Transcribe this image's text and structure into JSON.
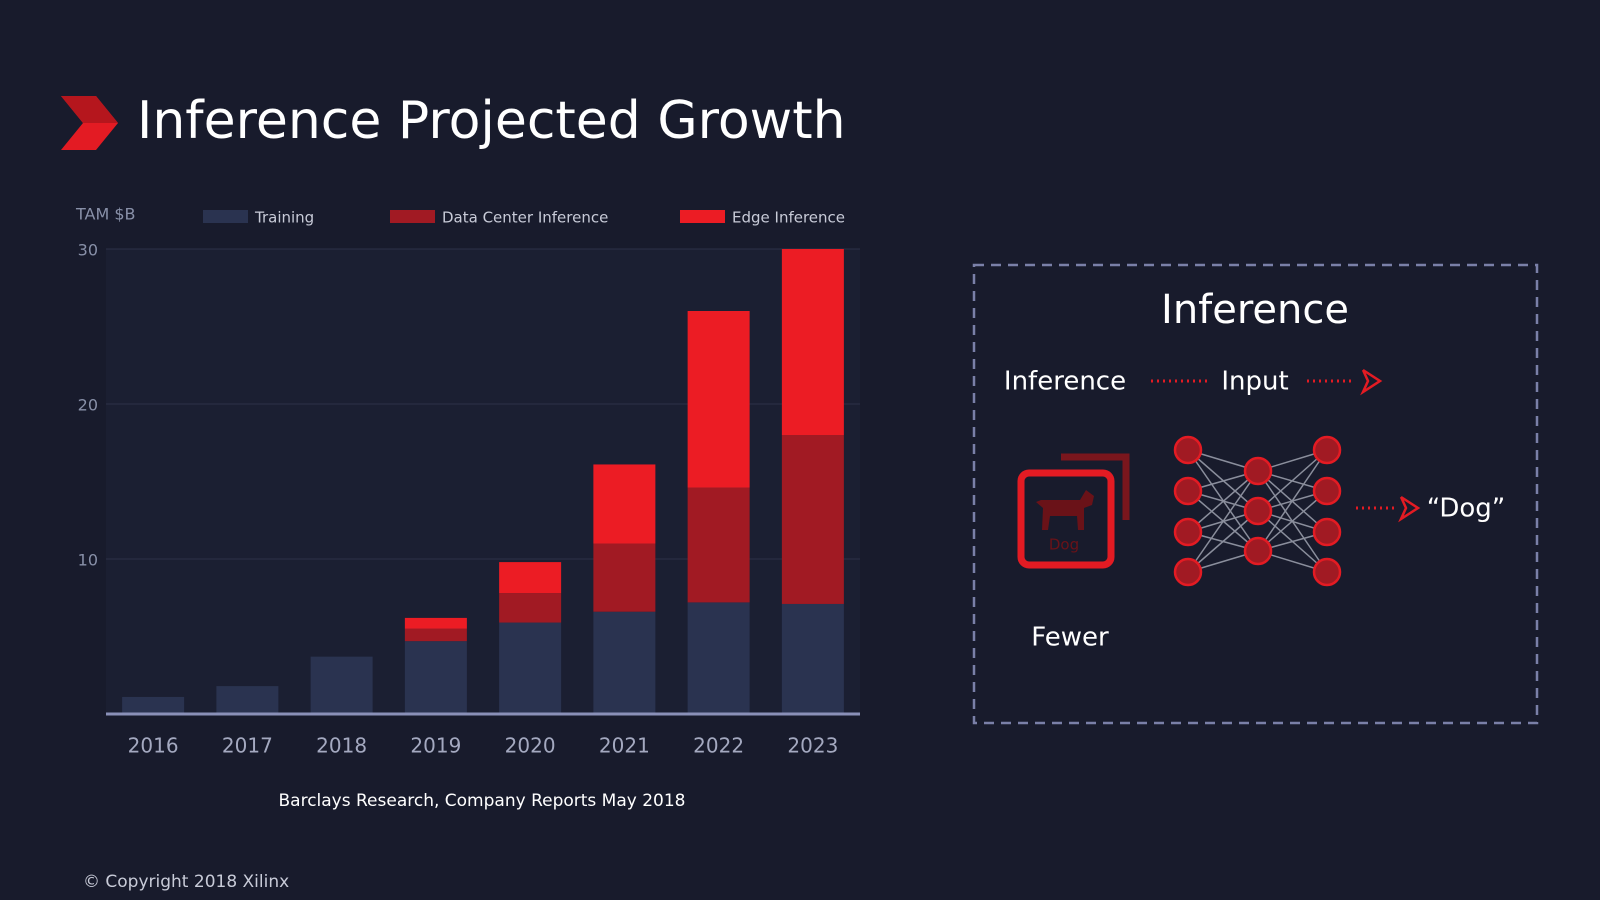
{
  "title": "Inference Projected Growth",
  "chart_data": {
    "type": "stacked-bar",
    "y_label": "TAM $B",
    "categories": [
      "2016",
      "2017",
      "2018",
      "2019",
      "2020",
      "2021",
      "2022",
      "2023"
    ],
    "series": [
      {
        "name": "Training",
        "color": "#2a3350",
        "values": [
          1.1,
          1.8,
          3.7,
          4.7,
          5.9,
          6.6,
          7.2,
          7.1
        ]
      },
      {
        "name": "Data Center Inference",
        "color": "#a11a23",
        "values": [
          0,
          0,
          0,
          0.8,
          1.9,
          4.4,
          7.4,
          10.9
        ]
      },
      {
        "name": "Edge Inference",
        "color": "#ec1c24",
        "values": [
          0,
          0,
          0,
          0.7,
          2.0,
          5.1,
          11.4,
          12.0
        ]
      }
    ],
    "ylim": [
      0,
      30
    ],
    "yticks": [
      10,
      20,
      30
    ],
    "grid": true
  },
  "source": "Barclays Research, Company Reports May 2018",
  "copyright": "© Copyright 2018 Xilinx",
  "panel": {
    "title": "Inference",
    "step_1": "Inference",
    "step_2": "Input",
    "icon_label": "Dog",
    "output": "“Dog”",
    "caption": "Fewer"
  }
}
